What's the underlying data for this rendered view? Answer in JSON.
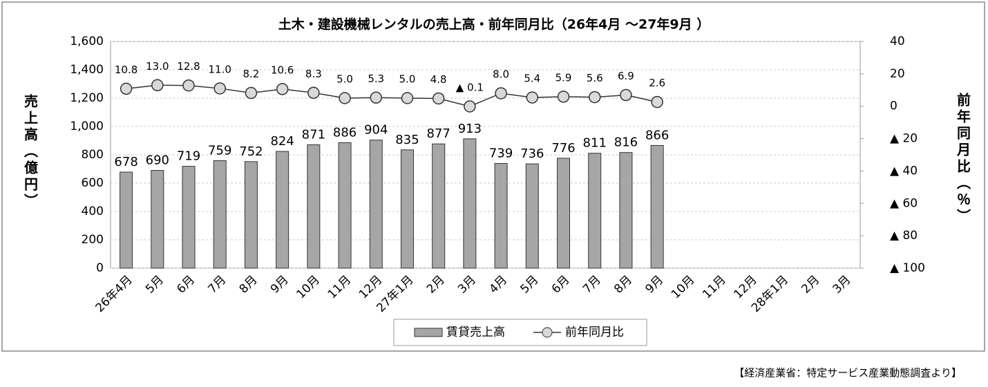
{
  "chart_data": {
    "type": "bar_line",
    "title": "土木・建設機械レンタルの売上高・前年同月比（26年4月 ～27年9月 ）",
    "ylabel": "売上高（億円）",
    "y2label": "前年同月比（％）",
    "source": "【経済産業省：特定サービス産業動態調査より】",
    "categories": [
      "26年4月",
      "5月",
      "6月",
      "7月",
      "8月",
      "9月",
      "10月",
      "11月",
      "12月",
      "27年1月",
      "2月",
      "3月",
      "4月",
      "5月",
      "6月",
      "7月",
      "8月",
      "9月",
      "10月",
      "11月",
      "12月",
      "28年1月",
      "2月",
      "3月"
    ],
    "series": [
      {
        "name": "賃貸売上高",
        "type": "bar",
        "color": "#a6a6a6",
        "values": [
          678,
          690,
          719,
          759,
          752,
          824,
          871,
          886,
          904,
          835,
          877,
          913,
          739,
          736,
          776,
          811,
          816,
          866,
          null,
          null,
          null,
          null,
          null,
          null
        ]
      },
      {
        "name": "前年同月比",
        "type": "line",
        "axis": "y2",
        "color": "#d9d9d9",
        "values": [
          10.8,
          13.0,
          12.8,
          11.0,
          8.2,
          10.6,
          8.3,
          5.0,
          5.3,
          5.0,
          4.8,
          -0.1,
          8.0,
          5.4,
          5.9,
          5.6,
          6.9,
          2.6,
          null,
          null,
          null,
          null,
          null,
          null
        ],
        "value_labels": [
          "10.8",
          "13.0",
          "12.8",
          "11.0",
          "8.2",
          "10.6",
          "8.3",
          "5.0",
          "5.3",
          "5.0",
          "4.8",
          "▲ 0.1",
          "8.0",
          "5.4",
          "5.9",
          "5.6",
          "6.9",
          "2.6",
          null,
          null,
          null,
          null,
          null,
          null
        ]
      }
    ],
    "ylim": [
      0,
      1600
    ],
    "yticks": [
      0,
      200,
      400,
      600,
      800,
      {
        "value": 1000,
        "label": "1,000"
      },
      {
        "value": 1200,
        "label": "1,200"
      },
      {
        "value": 1400,
        "label": "1,400"
      },
      {
        "value": 1600,
        "label": "1,600"
      }
    ],
    "y2lim": [
      -100,
      40
    ],
    "y2ticks": [
      {
        "value": -100,
        "label": "▲ 100"
      },
      {
        "value": -80,
        "label": "▲ 80"
      },
      {
        "value": -60,
        "label": "▲ 60"
      },
      {
        "value": -40,
        "label": "▲ 40"
      },
      {
        "value": -20,
        "label": "▲ 20"
      },
      0,
      20,
      40
    ],
    "grid": true
  }
}
